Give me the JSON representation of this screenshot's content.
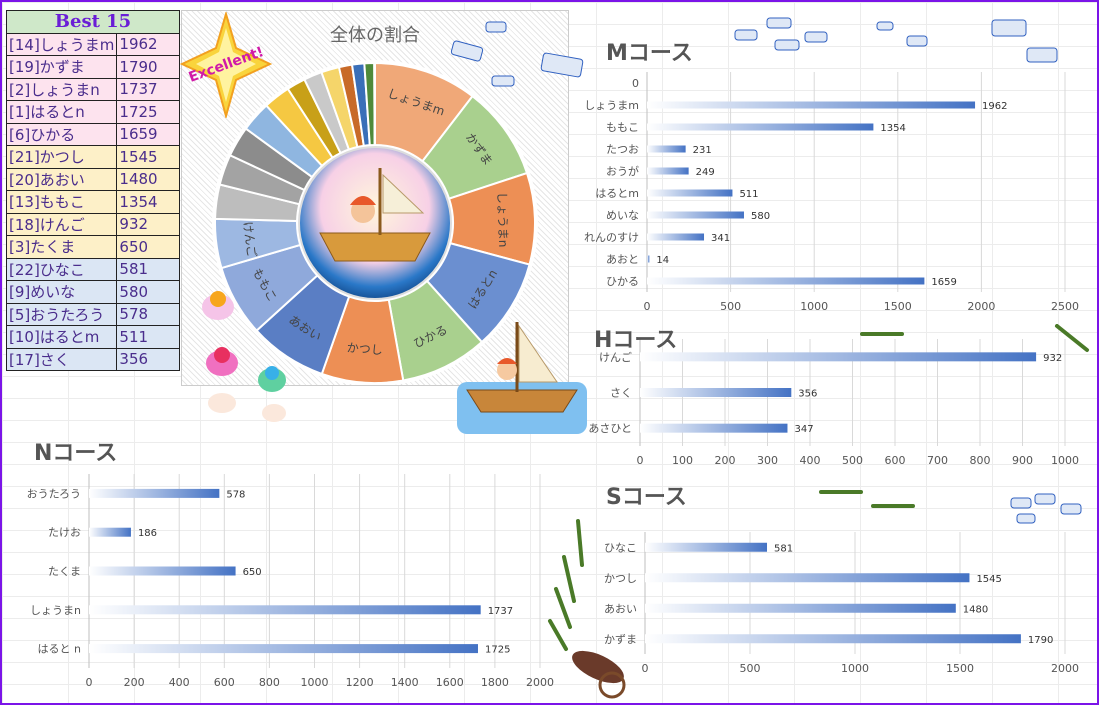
{
  "best": {
    "title": "Best 15",
    "rows": [
      {
        "name": "[14]しょうまm",
        "score": "1962",
        "color": "pink"
      },
      {
        "name": "[19]かずま",
        "score": "1790",
        "color": "pink"
      },
      {
        "name": "[2]しょうまn",
        "score": "1737",
        "color": "pink"
      },
      {
        "name": "[1]はるとn",
        "score": "1725",
        "color": "pink"
      },
      {
        "name": "[6]ひかる",
        "score": "1659",
        "color": "pink"
      },
      {
        "name": "[21]かつし",
        "score": "1545",
        "color": "yel"
      },
      {
        "name": "[20]あおい",
        "score": "1480",
        "color": "yel"
      },
      {
        "name": "[13]ももこ",
        "score": "1354",
        "color": "yel"
      },
      {
        "name": "[18]けんご",
        "score": "932",
        "color": "yel"
      },
      {
        "name": "[3]たくま",
        "score": "650",
        "color": "yel"
      },
      {
        "name": "[22]ひなこ",
        "score": "581",
        "color": "blu"
      },
      {
        "name": "[9]めいな",
        "score": "580",
        "color": "blu"
      },
      {
        "name": "[5]おうたろう",
        "score": "578",
        "color": "blu"
      },
      {
        "name": "[10]はるとm",
        "score": "511",
        "color": "blu"
      },
      {
        "name": "[17]さく",
        "score": "356",
        "color": "blu"
      }
    ]
  },
  "badge": {
    "text": "Excellent!"
  },
  "chart_data": [
    {
      "id": "pie",
      "type": "pie",
      "title": "全体の割合",
      "labels": [
        "しょうまm",
        "かずま",
        "しょうまn",
        "はるとn",
        "ひかる",
        "かつし",
        "あおい",
        "ももこ",
        "けんご",
        "",
        "",
        "",
        "",
        "",
        "",
        "",
        "",
        "",
        "",
        "",
        ""
      ],
      "values": [
        1962,
        1790,
        1737,
        1725,
        1659,
        1545,
        1480,
        1354,
        932,
        650,
        581,
        580,
        578,
        511,
        356,
        347,
        341,
        249,
        231,
        186,
        14
      ],
      "colors": [
        "#f0a878",
        "#a9d08e",
        "#ed8f55",
        "#6b8fd0",
        "#a9d08e",
        "#ed8f55",
        "#5a7ec4",
        "#8fa9db",
        "#9db8e2",
        "#bdbdbd",
        "#a3a3a3",
        "#8c8c8c",
        "#8fb6e0",
        "#f5c842",
        "#c8a018",
        "#c9c9c9",
        "#f5d56a",
        "#c86a28",
        "#3a6fb8",
        "#4f8a3a",
        "#f0c020"
      ]
    },
    {
      "id": "m",
      "type": "bar",
      "title": "Mコース",
      "categories": [
        "0",
        "しょうまm",
        "ももこ",
        "たつお",
        "おうが",
        "はるとm",
        "めいな",
        "れんのすけ",
        "あおと",
        "ひかる"
      ],
      "values": [
        null,
        1962,
        1354,
        231,
        249,
        511,
        580,
        341,
        14,
        1659
      ],
      "xlim": [
        0,
        2500
      ],
      "ticks": [
        0,
        500,
        1000,
        1500,
        2000,
        2500
      ]
    },
    {
      "id": "h",
      "type": "bar",
      "title": "Hコース",
      "categories": [
        "けんご",
        "さく",
        "あさひと"
      ],
      "values": [
        932,
        356,
        347
      ],
      "xlim": [
        0,
        1000
      ],
      "ticks": [
        0,
        100,
        200,
        300,
        400,
        500,
        600,
        700,
        800,
        900,
        1000
      ]
    },
    {
      "id": "n",
      "type": "bar",
      "title": "Nコース",
      "categories": [
        "おうたろう",
        "たけお",
        "たくま",
        "しょうまn",
        "はると n"
      ],
      "values": [
        578,
        186,
        650,
        1737,
        1725
      ],
      "xlim": [
        0,
        2000
      ],
      "ticks": [
        0,
        200,
        400,
        600,
        800,
        1000,
        1200,
        1400,
        1600,
        1800,
        2000
      ]
    },
    {
      "id": "s",
      "type": "bar",
      "title": "Sコース",
      "categories": [
        "ひなこ",
        "かつし",
        "あおい",
        "かずま"
      ],
      "values": [
        581,
        1545,
        1480,
        1790
      ],
      "xlim": [
        0,
        2000
      ],
      "ticks": [
        0,
        500,
        1000,
        1500,
        2000
      ]
    }
  ]
}
